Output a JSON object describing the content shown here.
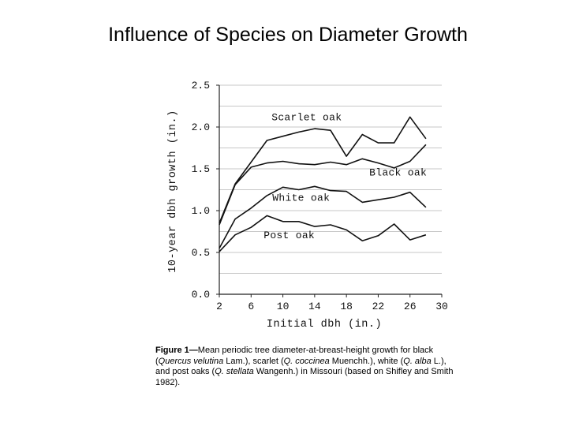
{
  "slide": {
    "title": "Influence of Species on Diameter Growth"
  },
  "caption": {
    "label": "Figure 1",
    "dash": "—",
    "t1": "Mean periodic tree diameter-at-breast-height growth for black (",
    "i1": "Quercus velutina",
    "t2": " Lam.), scarlet (",
    "i2": "Q. coccinea",
    "t3": " Muenchh.), white (",
    "i3": "Q. alba",
    "t4": " L.), and post oaks (",
    "i4": "Q. stellata",
    "t5": " Wangenh.) in Missouri (based on Shifley and Smith 1982)."
  },
  "chart_data": {
    "type": "line",
    "title": "",
    "xlabel": "Initial dbh (in.)",
    "ylabel": "10-year dbh growth (in.)",
    "xlim": [
      2,
      30
    ],
    "ylim": [
      0,
      2.5
    ],
    "xticks": [
      2,
      6,
      10,
      14,
      18,
      22,
      26,
      30
    ],
    "xtick_labels": [
      "2",
      "6",
      "10",
      "14",
      "18",
      "22",
      "26",
      "30"
    ],
    "yticks": [
      0,
      0.5,
      1.0,
      1.5,
      2.0,
      2.5
    ],
    "ytick_labels": [
      "0.0",
      "0.5",
      "1.0",
      "1.5",
      "2.0",
      "2.5"
    ],
    "grid": true,
    "series": [
      {
        "name": "Scarlet oak",
        "x": [
          2,
          4,
          6,
          8,
          10,
          12,
          14,
          16,
          18,
          20,
          22,
          24,
          26,
          28
        ],
        "values": [
          0.85,
          1.32,
          1.58,
          1.84,
          1.89,
          1.94,
          1.98,
          1.96,
          1.65,
          1.91,
          1.81,
          1.81,
          2.12,
          1.86
        ]
      },
      {
        "name": "Black oak",
        "x": [
          2,
          4,
          6,
          8,
          10,
          12,
          14,
          16,
          18,
          20,
          22,
          24,
          26,
          28
        ],
        "values": [
          0.83,
          1.31,
          1.52,
          1.57,
          1.59,
          1.56,
          1.55,
          1.58,
          1.55,
          1.62,
          1.57,
          1.51,
          1.59,
          1.79
        ]
      },
      {
        "name": "White oak",
        "x": [
          2,
          4,
          6,
          8,
          10,
          12,
          14,
          16,
          18,
          20,
          22,
          24,
          26,
          28
        ],
        "values": [
          0.55,
          0.9,
          1.03,
          1.18,
          1.28,
          1.25,
          1.29,
          1.24,
          1.23,
          1.1,
          1.13,
          1.16,
          1.22,
          1.04
        ]
      },
      {
        "name": "Post oak",
        "x": [
          2,
          4,
          6,
          8,
          10,
          12,
          14,
          16,
          18,
          20,
          22,
          24,
          26,
          28
        ],
        "values": [
          0.51,
          0.71,
          0.8,
          0.94,
          0.87,
          0.87,
          0.81,
          0.83,
          0.77,
          0.64,
          0.7,
          0.84,
          0.65,
          0.71
        ]
      }
    ],
    "annotations": [
      {
        "text": "Scarlet oak",
        "x": 13,
        "y": 2.08
      },
      {
        "text": "Black oak",
        "x": 24.5,
        "y": 1.42
      },
      {
        "text": "White oak",
        "x": 12.3,
        "y": 1.12
      },
      {
        "text": "Post oak",
        "x": 10.8,
        "y": 0.67
      }
    ]
  }
}
